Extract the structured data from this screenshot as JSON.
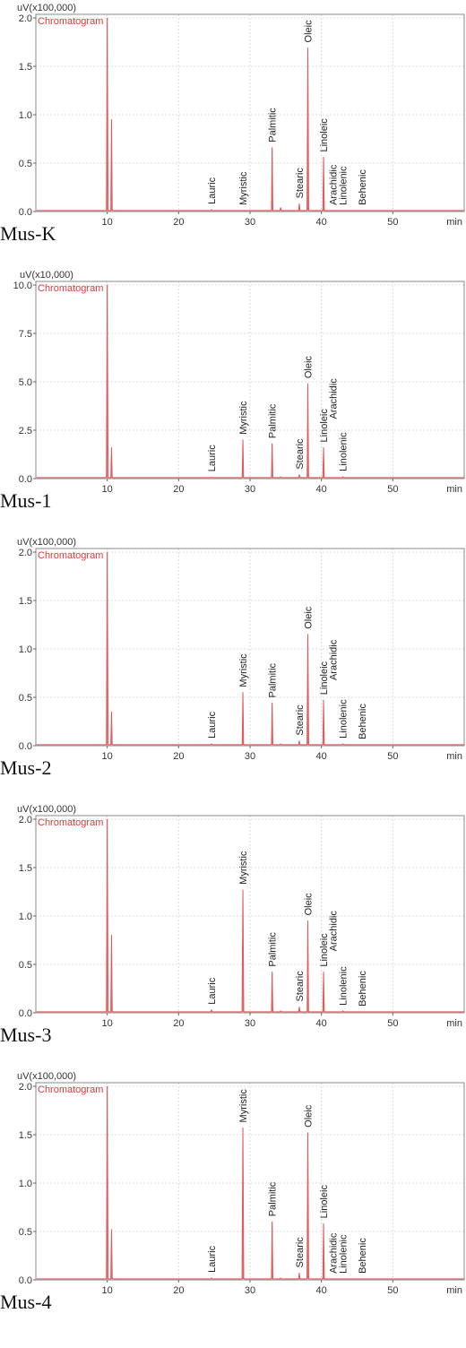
{
  "chart_data": [
    {
      "type": "line",
      "sample_label": "Mus-K",
      "unit_label": "uV(x100,000)",
      "legend": "Chromatogram",
      "xlabel": "min",
      "xlim": [
        0,
        60
      ],
      "ylim": [
        0.0,
        2.0
      ],
      "y_ticks": [
        "0.0",
        "0.5",
        "1.0",
        "1.5",
        "2.0"
      ],
      "x_ticks": [
        "10",
        "20",
        "30",
        "40",
        "50"
      ],
      "series": [
        {
          "color": "#e05a5a",
          "peaks": [
            {
              "x": 10.0,
              "y": 2.0
            },
            {
              "x": 10.6,
              "y": 0.95
            },
            {
              "x": 24.6,
              "y": 0.02
            },
            {
              "x": 29.0,
              "y": 0.01
            },
            {
              "x": 33.1,
              "y": 0.66
            },
            {
              "x": 34.3,
              "y": 0.04
            },
            {
              "x": 36.9,
              "y": 0.08
            },
            {
              "x": 38.1,
              "y": 1.69
            },
            {
              "x": 40.3,
              "y": 0.56
            },
            {
              "x": 41.6,
              "y": 0.01
            },
            {
              "x": 43.0,
              "y": 0.01
            },
            {
              "x": 45.7,
              "y": 0.01
            }
          ]
        }
      ],
      "annotations": [
        {
          "text": "Lauric",
          "x": 24.6,
          "y": 0.02
        },
        {
          "text": "Myristic",
          "x": 29.0,
          "y": 0.01
        },
        {
          "text": "Palmitic",
          "x": 33.1,
          "y": 0.66
        },
        {
          "text": "Stearic",
          "x": 36.9,
          "y": 0.08
        },
        {
          "text": "Oleic",
          "x": 38.1,
          "y": 1.69
        },
        {
          "text": "Linoleic",
          "x": 40.3,
          "y": 0.56
        },
        {
          "text": "Arachidic",
          "x": 41.6,
          "y": 0.01
        },
        {
          "text": "Linolenic",
          "x": 43.0,
          "y": 0.01
        },
        {
          "text": "Behenic",
          "x": 45.7,
          "y": 0.01
        }
      ]
    },
    {
      "type": "line",
      "sample_label": "Mus-1",
      "unit_label": "uV(x10,000)",
      "legend": "Chromatogram",
      "xlabel": "min",
      "xlim": [
        0,
        60
      ],
      "ylim": [
        0.0,
        10.0
      ],
      "y_ticks": [
        "0.0",
        "2.5",
        "5.0",
        "7.5",
        "10.0"
      ],
      "x_ticks": [
        "10",
        "20",
        "30",
        "40",
        "50"
      ],
      "series": [
        {
          "color": "#e05a5a",
          "peaks": [
            {
              "x": 10.0,
              "y": 10.0
            },
            {
              "x": 10.6,
              "y": 1.6
            },
            {
              "x": 24.6,
              "y": 0.08
            },
            {
              "x": 29.0,
              "y": 2.0
            },
            {
              "x": 33.1,
              "y": 1.8
            },
            {
              "x": 34.3,
              "y": 0.1
            },
            {
              "x": 36.9,
              "y": 0.2
            },
            {
              "x": 38.1,
              "y": 4.9
            },
            {
              "x": 40.3,
              "y": 1.6
            },
            {
              "x": 43.0,
              "y": 0.1
            }
          ]
        }
      ],
      "annotations": [
        {
          "text": "Lauric",
          "x": 24.6,
          "y": 0.08
        },
        {
          "text": "Myristic",
          "x": 29.0,
          "y": 2.0
        },
        {
          "text": "Palmitic",
          "x": 33.1,
          "y": 1.8
        },
        {
          "text": "Stearic",
          "x": 36.9,
          "y": 0.2
        },
        {
          "text": "Oleic",
          "x": 38.1,
          "y": 4.9
        },
        {
          "text": "Linoleic",
          "x": 40.3,
          "y": 1.6
        },
        {
          "text": "Arachidic",
          "x": 41.6,
          "y": 2.8
        },
        {
          "text": "Linolenic",
          "x": 43.0,
          "y": 0.1
        }
      ]
    },
    {
      "type": "line",
      "sample_label": "Mus-2",
      "unit_label": "uV(x100,000)",
      "legend": "Chromatogram",
      "xlabel": "min",
      "xlim": [
        0,
        60
      ],
      "ylim": [
        0.0,
        2.0
      ],
      "y_ticks": [
        "0.0",
        "0.5",
        "1.0",
        "1.5",
        "2.0"
      ],
      "x_ticks": [
        "10",
        "20",
        "30",
        "40",
        "50"
      ],
      "series": [
        {
          "color": "#e05a5a",
          "peaks": [
            {
              "x": 10.0,
              "y": 2.0
            },
            {
              "x": 10.6,
              "y": 0.35
            },
            {
              "x": 24.6,
              "y": 0.02
            },
            {
              "x": 29.0,
              "y": 0.55
            },
            {
              "x": 33.1,
              "y": 0.44
            },
            {
              "x": 34.3,
              "y": 0.02
            },
            {
              "x": 36.9,
              "y": 0.05
            },
            {
              "x": 38.1,
              "y": 1.15
            },
            {
              "x": 40.3,
              "y": 0.47
            },
            {
              "x": 41.6,
              "y": 0.01
            },
            {
              "x": 43.0,
              "y": 0.02
            },
            {
              "x": 45.7,
              "y": 0.01
            }
          ]
        }
      ],
      "annotations": [
        {
          "text": "Lauric",
          "x": 24.6,
          "y": 0.02
        },
        {
          "text": "Myristic",
          "x": 29.0,
          "y": 0.55
        },
        {
          "text": "Palmitic",
          "x": 33.1,
          "y": 0.44
        },
        {
          "text": "Stearic",
          "x": 36.9,
          "y": 0.05
        },
        {
          "text": "Oleic",
          "x": 38.1,
          "y": 1.15
        },
        {
          "text": "Linoleic",
          "x": 40.3,
          "y": 0.47
        },
        {
          "text": "Arachidic",
          "x": 41.6,
          "y": 0.62
        },
        {
          "text": "Linolenic",
          "x": 43.0,
          "y": 0.02
        },
        {
          "text": "Behenic",
          "x": 45.7,
          "y": 0.01
        }
      ]
    },
    {
      "type": "line",
      "sample_label": "Mus-3",
      "unit_label": "uV(x100,000)",
      "legend": "Chromatogram",
      "xlabel": "min",
      "xlim": [
        0,
        60
      ],
      "ylim": [
        0.0,
        2.0
      ],
      "y_ticks": [
        "0.0",
        "0.5",
        "1.0",
        "1.5",
        "2.0"
      ],
      "x_ticks": [
        "10",
        "20",
        "30",
        "40",
        "50"
      ],
      "series": [
        {
          "color": "#e05a5a",
          "peaks": [
            {
              "x": 10.0,
              "y": 2.0
            },
            {
              "x": 10.6,
              "y": 0.8
            },
            {
              "x": 24.6,
              "y": 0.03
            },
            {
              "x": 29.0,
              "y": 1.27
            },
            {
              "x": 33.1,
              "y": 0.42
            },
            {
              "x": 34.3,
              "y": 0.02
            },
            {
              "x": 36.9,
              "y": 0.06
            },
            {
              "x": 38.1,
              "y": 0.95
            },
            {
              "x": 40.3,
              "y": 0.42
            },
            {
              "x": 41.6,
              "y": 0.01
            },
            {
              "x": 43.0,
              "y": 0.02
            },
            {
              "x": 45.7,
              "y": 0.01
            }
          ]
        }
      ],
      "annotations": [
        {
          "text": "Lauric",
          "x": 24.6,
          "y": 0.03
        },
        {
          "text": "Myristic",
          "x": 29.0,
          "y": 1.27
        },
        {
          "text": "Palmitic",
          "x": 33.1,
          "y": 0.42
        },
        {
          "text": "Stearic",
          "x": 36.9,
          "y": 0.06
        },
        {
          "text": "Oleic",
          "x": 38.1,
          "y": 0.95
        },
        {
          "text": "Linoleic",
          "x": 40.3,
          "y": 0.42
        },
        {
          "text": "Arachidic",
          "x": 41.6,
          "y": 0.58
        },
        {
          "text": "Linolenic",
          "x": 43.0,
          "y": 0.02
        },
        {
          "text": "Behenic",
          "x": 45.7,
          "y": 0.01
        }
      ]
    },
    {
      "type": "line",
      "sample_label": "Mus-4",
      "unit_label": "uV(x100,000)",
      "legend": "Chromatogram",
      "xlabel": "min",
      "xlim": [
        0,
        60
      ],
      "ylim": [
        0.0,
        2.0
      ],
      "y_ticks": [
        "0.0",
        "0.5",
        "1.0",
        "1.5",
        "2.0"
      ],
      "x_ticks": [
        "10",
        "20",
        "30",
        "40",
        "50"
      ],
      "series": [
        {
          "color": "#e05a5a",
          "peaks": [
            {
              "x": 10.0,
              "y": 2.0
            },
            {
              "x": 10.6,
              "y": 0.52
            },
            {
              "x": 24.6,
              "y": 0.02
            },
            {
              "x": 29.0,
              "y": 1.57
            },
            {
              "x": 33.1,
              "y": 0.6
            },
            {
              "x": 34.3,
              "y": 0.02
            },
            {
              "x": 36.9,
              "y": 0.07
            },
            {
              "x": 38.1,
              "y": 1.52
            },
            {
              "x": 40.3,
              "y": 0.58
            },
            {
              "x": 41.6,
              "y": 0.01
            },
            {
              "x": 43.0,
              "y": 0.01
            },
            {
              "x": 45.7,
              "y": 0.01
            }
          ]
        }
      ],
      "annotations": [
        {
          "text": "Lauric",
          "x": 24.6,
          "y": 0.02
        },
        {
          "text": "Myristic",
          "x": 29.0,
          "y": 1.57
        },
        {
          "text": "Palmitic",
          "x": 33.1,
          "y": 0.6
        },
        {
          "text": "Stearic",
          "x": 36.9,
          "y": 0.07
        },
        {
          "text": "Oleic",
          "x": 38.1,
          "y": 1.52
        },
        {
          "text": "Linoleic",
          "x": 40.3,
          "y": 0.58
        },
        {
          "text": "Arachidic",
          "x": 41.6,
          "y": 0.01
        },
        {
          "text": "Linolenic",
          "x": 43.0,
          "y": 0.01
        },
        {
          "text": "Behenic",
          "x": 45.7,
          "y": 0.01
        }
      ]
    }
  ]
}
